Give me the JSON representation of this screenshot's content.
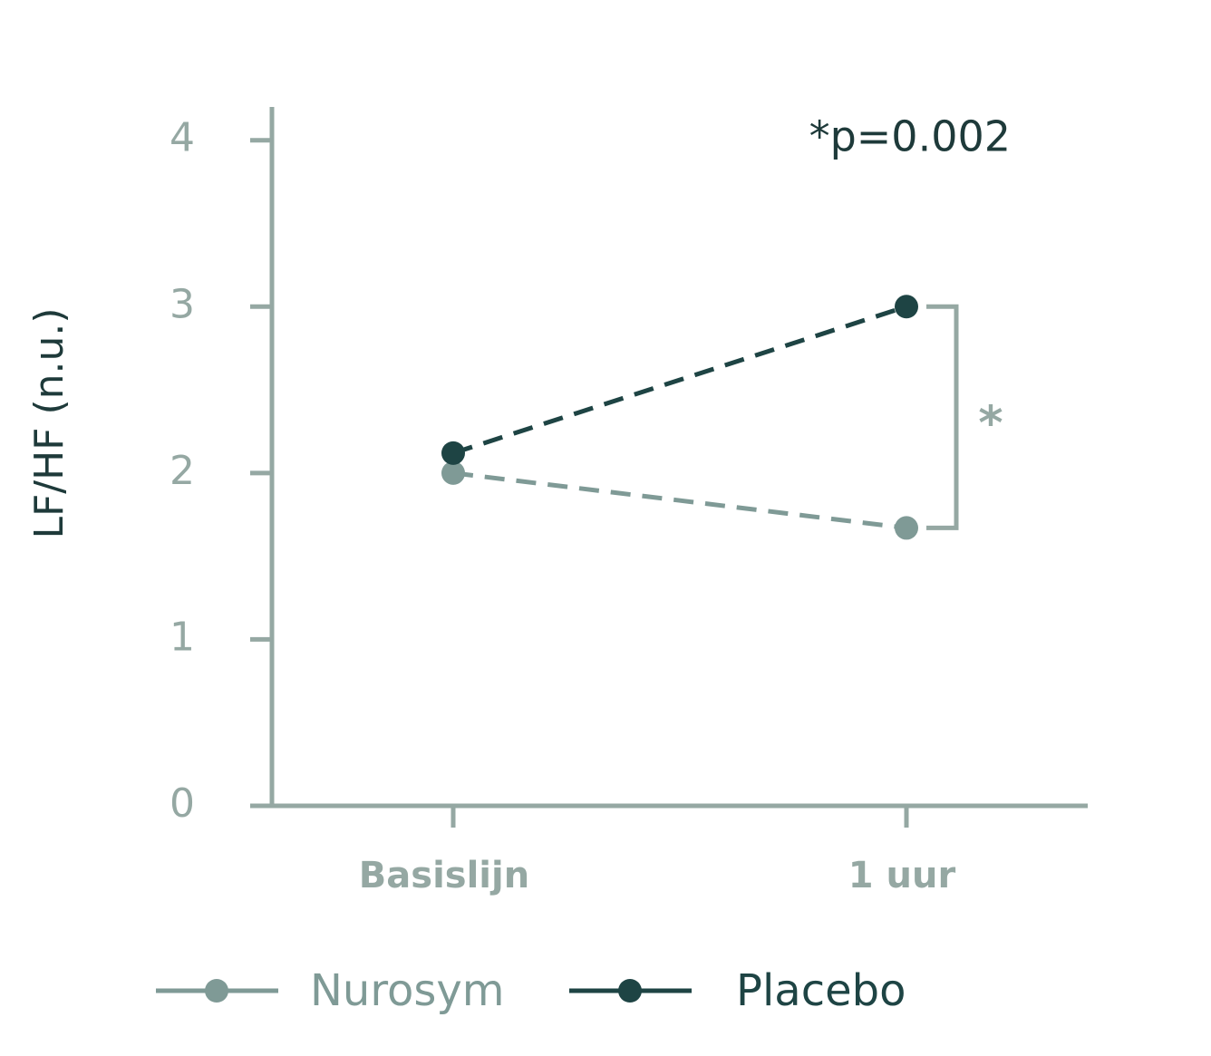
{
  "chart_data": {
    "type": "line",
    "y_label": "LF/HF (n.u.)",
    "annotation": "*p=0.002",
    "significance_marker": "*",
    "categories": [
      "Basislijn",
      "1 uur"
    ],
    "series": [
      {
        "name": "Nurosym",
        "color": "#7f9a96",
        "values": [
          2.0,
          1.67
        ]
      },
      {
        "name": "Placebo",
        "color": "#1e4444",
        "values": [
          2.12,
          3.0
        ]
      }
    ],
    "ylim": [
      0,
      4.2
    ],
    "yticks": [
      0,
      1,
      2,
      3,
      4
    ],
    "dashed": true,
    "axis_color": "#95a8a3"
  }
}
